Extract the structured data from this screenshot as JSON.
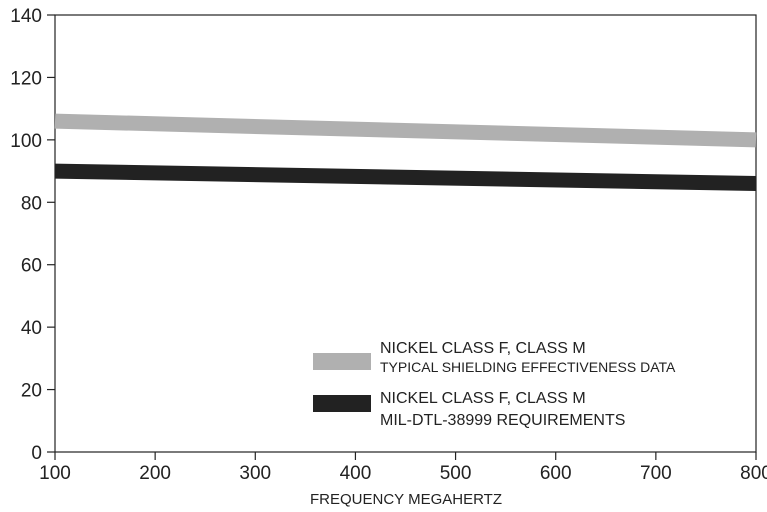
{
  "chart_data": {
    "type": "line",
    "title": "",
    "xlabel": "FREQUENCY MEGAHERTZ",
    "ylabel": "",
    "xlim": [
      100,
      800
    ],
    "ylim": [
      0,
      140
    ],
    "x_ticks": [
      "100",
      "200",
      "300",
      "400",
      "500",
      "600",
      "700",
      "800"
    ],
    "y_ticks": [
      "0",
      "20",
      "40",
      "60",
      "80",
      "100",
      "120",
      "140"
    ],
    "grid": false,
    "legend_placement": "bottom-right",
    "series": [
      {
        "name_line1": "NICKEL CLASS F, CLASS M",
        "name_line2": "TYPICAL SHIELDING EFFECTIVENESS DATA",
        "color": "#b0b0b0",
        "x": [
          100,
          800
        ],
        "y": [
          106,
          100
        ]
      },
      {
        "name_line1": "NICKEL CLASS F, CLASS M",
        "name_line2": "MIL-DTL-38999 REQUIREMENTS",
        "color": "#222222",
        "x": [
          100,
          800
        ],
        "y": [
          90,
          86
        ]
      }
    ]
  }
}
